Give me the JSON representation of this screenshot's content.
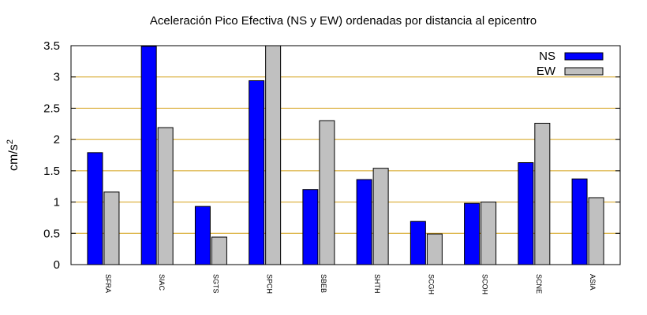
{
  "chart_data": {
    "type": "bar",
    "title": "Aceleración Pico Efectiva (NS y EW) ordenadas por distancia al epicentro",
    "xlabel": "",
    "ylabel": "cm/s",
    "ylabel_superscript": "2",
    "ylim": [
      0,
      3.5
    ],
    "yticks": [
      "0",
      "0.5",
      "1",
      "1.5",
      "2",
      "2.5",
      "3",
      "3.5"
    ],
    "grid": "horizontal",
    "legend_position": "top-right",
    "categories": [
      "SFRA",
      "SIAC",
      "SGTS",
      "SPCH",
      "SBEB",
      "SHTH",
      "SCGH",
      "SCOH",
      "SCNE",
      "ASIA"
    ],
    "series": [
      {
        "name": "NS",
        "color": "#0000ff",
        "values": [
          1.79,
          3.49,
          0.93,
          2.94,
          1.2,
          1.36,
          0.69,
          0.98,
          1.63,
          1.37
        ]
      },
      {
        "name": "EW",
        "color": "#c0c0c0",
        "values": [
          1.16,
          2.19,
          0.44,
          3.5,
          2.3,
          1.54,
          0.49,
          1.0,
          2.26,
          1.07
        ]
      }
    ],
    "colors": {
      "grid": "#d4a017",
      "axis": "#000000"
    }
  }
}
